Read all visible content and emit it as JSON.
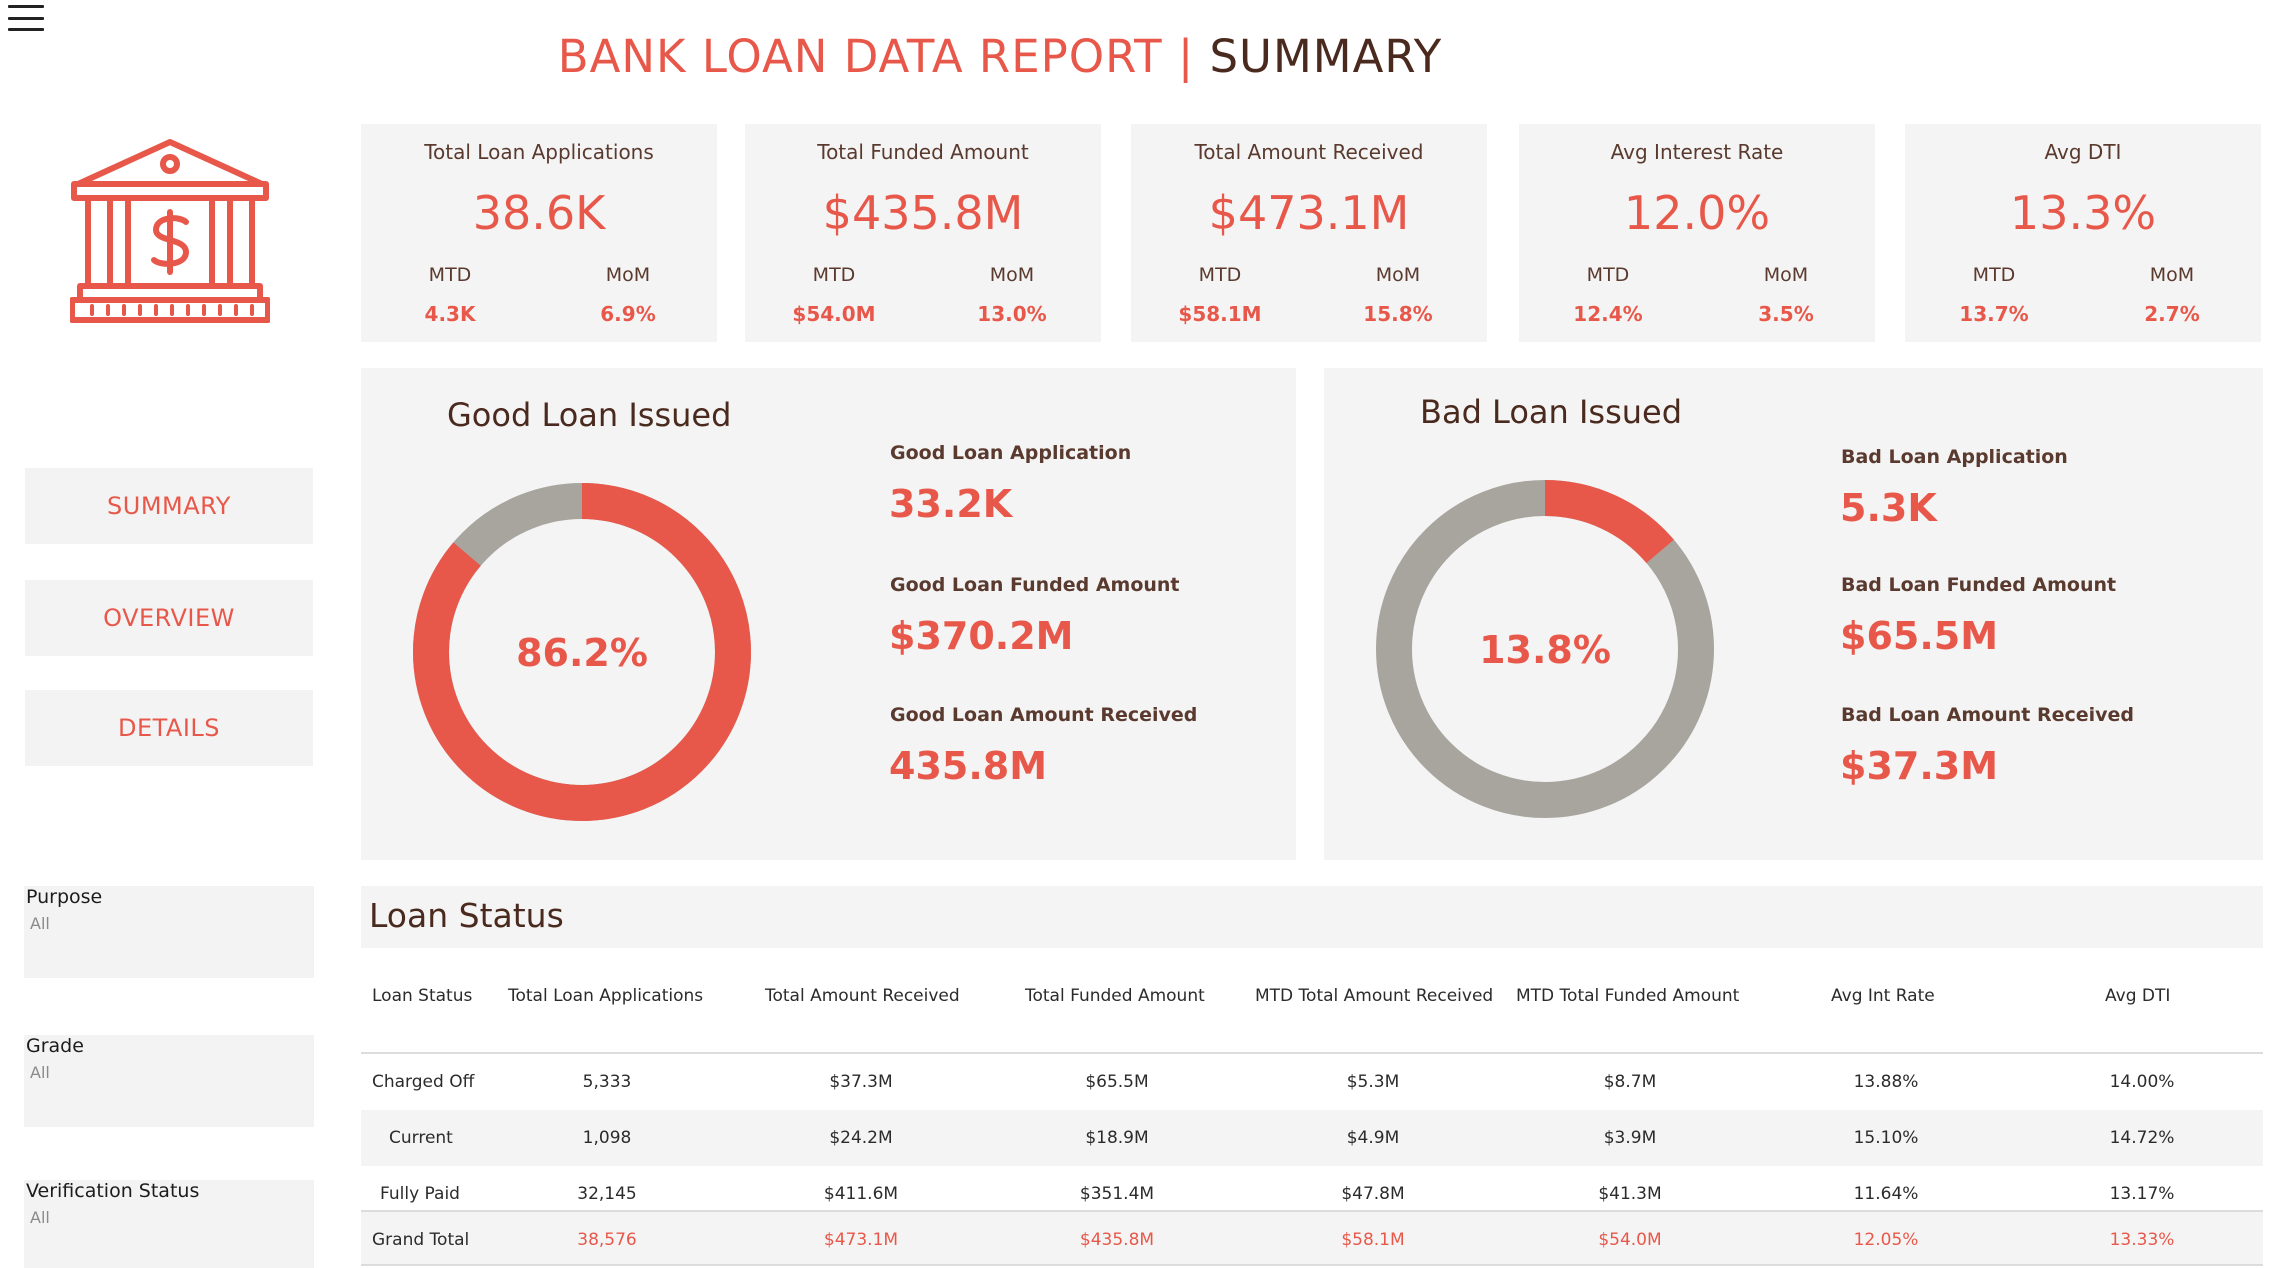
{
  "header": {
    "title_main": "BANK LOAN DATA REPORT |",
    "title_section": "SUMMARY"
  },
  "icons": {
    "menu": "hamburger-menu-icon",
    "logo": "bank-dollar-icon"
  },
  "colors": {
    "accent": "#e8584a",
    "dark_text": "#4a2a1e",
    "panel_bg": "#f4f4f4",
    "donut_grey": "#a8a59f"
  },
  "nav": {
    "summary": "SUMMARY",
    "overview": "OVERVIEW",
    "details": "DETAILS"
  },
  "filters": [
    {
      "label": "Purpose",
      "value": "All"
    },
    {
      "label": "Grade",
      "value": "All"
    },
    {
      "label": "Verification Status",
      "value": "All"
    }
  ],
  "kpis": [
    {
      "label": "Total Loan Applications",
      "value": "38.6K",
      "mtd_label": "MTD",
      "mtd": "4.3K",
      "mom_label": "MoM",
      "mom": "6.9%"
    },
    {
      "label": "Total Funded Amount",
      "value": "$435.8M",
      "mtd_label": "MTD",
      "mtd": "$54.0M",
      "mom_label": "MoM",
      "mom": "13.0%"
    },
    {
      "label": "Total Amount Received",
      "value": "$473.1M",
      "mtd_label": "MTD",
      "mtd": "$58.1M",
      "mom_label": "MoM",
      "mom": "15.8%"
    },
    {
      "label": "Avg Interest Rate",
      "value": "12.0%",
      "mtd_label": "MTD",
      "mtd": "12.4%",
      "mom_label": "MoM",
      "mom": "3.5%"
    },
    {
      "label": "Avg DTI",
      "value": "13.3%",
      "mtd_label": "MTD",
      "mtd": "13.7%",
      "mom_label": "MoM",
      "mom": "2.7%"
    }
  ],
  "good_loan": {
    "title": "Good Loan Issued",
    "percent_label": "86.2%",
    "share": 0.862,
    "application_label": "Good Loan Application",
    "application_value": "33.2K",
    "funded_label": "Good Loan Funded Amount",
    "funded_value": "$370.2M",
    "received_label": "Good Loan Amount Received",
    "received_value": "435.8M"
  },
  "bad_loan": {
    "title": "Bad Loan Issued",
    "percent_label": "13.8%",
    "share": 0.138,
    "application_label": "Bad Loan Application",
    "application_value": "5.3K",
    "funded_label": "Bad Loan Funded Amount",
    "funded_value": "$65.5M",
    "received_label": "Bad Loan Amount Received",
    "received_value": "$37.3M"
  },
  "loan_status": {
    "title": "Loan Status",
    "columns": [
      "Loan Status",
      "Total Loan Applications",
      "Total Amount Received",
      "Total Funded Amount",
      "MTD Total Amount Received",
      "MTD Total Funded Amount",
      "Avg Int Rate",
      "Avg DTI"
    ],
    "rows": [
      [
        "Charged Off",
        "5,333",
        "$37.3M",
        "$65.5M",
        "$5.3M",
        "$8.7M",
        "13.88%",
        "14.00%"
      ],
      [
        "Current",
        "1,098",
        "$24.2M",
        "$18.9M",
        "$4.9M",
        "$3.9M",
        "15.10%",
        "14.72%"
      ],
      [
        "Fully Paid",
        "32,145",
        "$411.6M",
        "$351.4M",
        "$47.8M",
        "$41.3M",
        "11.64%",
        "13.17%"
      ],
      [
        "Grand Total",
        "38,576",
        "$473.1M",
        "$435.8M",
        "$58.1M",
        "$54.0M",
        "12.05%",
        "13.33%"
      ]
    ]
  }
}
